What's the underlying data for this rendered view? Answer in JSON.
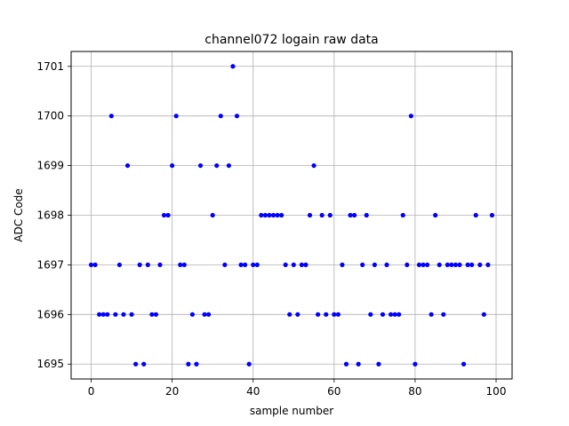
{
  "chart_data": {
    "type": "scatter",
    "title": "channel072 logain raw data",
    "xlabel": "sample number",
    "ylabel": "ADC Code",
    "xlim": [
      -4.95,
      103.95
    ],
    "ylim": [
      1694.7,
      1701.3
    ],
    "xticks": [
      0,
      20,
      40,
      60,
      80,
      100
    ],
    "yticks": [
      1695,
      1696,
      1697,
      1698,
      1699,
      1700,
      1701
    ],
    "grid": true,
    "marker_color": "#0000ff",
    "series": [
      {
        "x": [
          0,
          1,
          2,
          3,
          4,
          5,
          6,
          7,
          8,
          9,
          10,
          11,
          12,
          13,
          14,
          15,
          16,
          17,
          18,
          19,
          20,
          21,
          22,
          23,
          24,
          25,
          26,
          27,
          28,
          29,
          30,
          31,
          32,
          33,
          34,
          35,
          36,
          37,
          38,
          39,
          40,
          41,
          42,
          43,
          44,
          45,
          46,
          47,
          48,
          49,
          50,
          51,
          52,
          53,
          54,
          55,
          56,
          57,
          58,
          59,
          60,
          61,
          62,
          63,
          64,
          65,
          66,
          67,
          68,
          69,
          70,
          71,
          72,
          73,
          74,
          75,
          76,
          77,
          78,
          79,
          80,
          81,
          82,
          83,
          84,
          85,
          86,
          87,
          88,
          89,
          90,
          91,
          92,
          93,
          94,
          95,
          96,
          97,
          98,
          99
        ],
        "y": [
          1697,
          1697,
          1696,
          1696,
          1696,
          1700,
          1696,
          1697,
          1696,
          1699,
          1696,
          1695,
          1697,
          1695,
          1697,
          1696,
          1696,
          1697,
          1698,
          1698,
          1699,
          1700,
          1697,
          1697,
          1695,
          1696,
          1695,
          1699,
          1696,
          1696,
          1698,
          1699,
          1700,
          1697,
          1699,
          1701,
          1700,
          1697,
          1697,
          1695,
          1697,
          1697,
          1698,
          1698,
          1698,
          1698,
          1698,
          1698,
          1697,
          1696,
          1697,
          1696,
          1697,
          1697,
          1698,
          1699,
          1696,
          1698,
          1696,
          1698,
          1696,
          1696,
          1697,
          1695,
          1698,
          1698,
          1695,
          1697,
          1698,
          1696,
          1697,
          1695,
          1696,
          1697,
          1696,
          1696,
          1696,
          1698,
          1697,
          1700,
          1695,
          1697,
          1697,
          1697,
          1696,
          1698,
          1697,
          1696,
          1697,
          1697,
          1697,
          1697,
          1695,
          1697,
          1697,
          1698,
          1697,
          1696,
          1697,
          1698
        ]
      }
    ]
  }
}
